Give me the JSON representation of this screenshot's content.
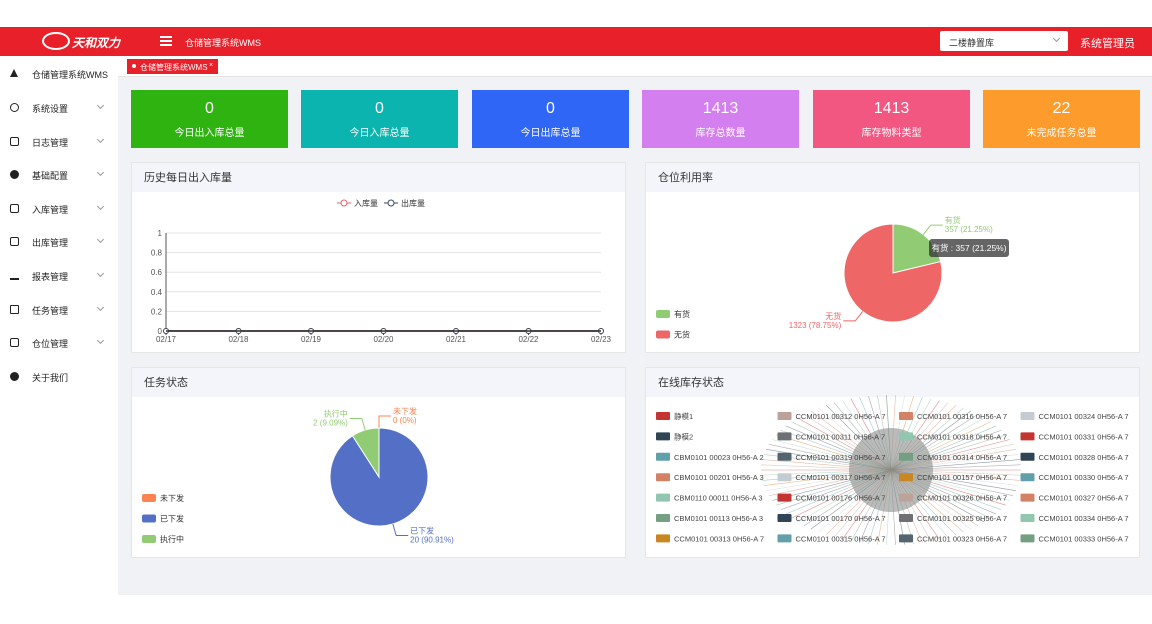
{
  "header": {
    "logo": "天和双力",
    "app_title": "仓储管理系统WMS",
    "warehouse": "二楼静置库",
    "user": "系统管理员"
  },
  "sidebar": {
    "items": [
      "仓储管理系统WMS",
      "系统设置",
      "日志管理",
      "基础配置",
      "入库管理",
      "出库管理",
      "报表管理",
      "任务管理",
      "仓位管理",
      "关于我们"
    ]
  },
  "tabs": [
    "仓储管理系统WMS"
  ],
  "stats": [
    {
      "value": 0,
      "label": "今日出入库总量",
      "color": "#2fb311"
    },
    {
      "value": 0,
      "label": "今日入库总量",
      "color": "#0bb4ae"
    },
    {
      "value": 0,
      "label": "今日出库总量",
      "color": "#2f66f6"
    },
    {
      "value": 1413,
      "label": "库存总数量",
      "color": "#d47ff0"
    },
    {
      "value": 1413,
      "label": "库存物料类型",
      "color": "#f25782"
    },
    {
      "value": 22,
      "label": "未完成任务总量",
      "color": "#fd9b2c"
    }
  ],
  "charts": {
    "daily": {
      "type": "line",
      "title": "历史每日出入库量",
      "categories": [
        "02/17",
        "02/18",
        "02/19",
        "02/20",
        "02/21",
        "02/22",
        "02/23"
      ],
      "series": [
        {
          "name": "入库量",
          "color": "#e06666",
          "values": [
            0,
            0,
            0,
            0,
            0,
            0,
            0
          ]
        },
        {
          "name": "出库量",
          "color": "#3d4a5a",
          "values": [
            0,
            0,
            0,
            0,
            0,
            0,
            0
          ]
        }
      ],
      "ylim": [
        0,
        1
      ],
      "yticks": [
        0,
        0.2,
        0.4,
        0.6,
        0.8,
        1
      ]
    },
    "storage": {
      "type": "pie",
      "title": "仓位利用率",
      "categories": [
        "有货",
        "无货"
      ],
      "values": [
        357,
        1323
      ],
      "value_labels": [
        "357 (21.25%)",
        "1323 (78.75%)"
      ],
      "colors": [
        "#91cc75",
        "#ee6666"
      ],
      "tooltip": "有货 : 357 (21.25%)"
    },
    "tasks": {
      "type": "pie",
      "title": "任务状态",
      "categories": [
        "未下发",
        "已下发",
        "执行中"
      ],
      "values": [
        0,
        20,
        2
      ],
      "value_labels": [
        "0 (0%)",
        "20 (90.91%)",
        "2 (9.09%)"
      ],
      "colors": [
        "#fc8452",
        "#5470c6",
        "#91cc75"
      ]
    },
    "inventory": {
      "title": "在线库存状态",
      "legend": [
        {
          "name": "静模1",
          "color": "#c23531"
        },
        {
          "name": "CCM0101 00312 0H56-A 7",
          "color": "#bda29a"
        },
        {
          "name": "CCM0101 00316 0H56-A 7",
          "color": "#d48265"
        },
        {
          "name": "CCM0101 00324 0H56-A 7",
          "color": "#c4ccd3"
        },
        {
          "name": "静模2",
          "color": "#2f4554"
        },
        {
          "name": "CCM0101 00311 0H56-A 7",
          "color": "#6e7074"
        },
        {
          "name": "CCM0101 00318 0H56-A 7",
          "color": "#91c7ae"
        },
        {
          "name": "CCM0101 00331 0H56-A 7",
          "color": "#c23531"
        },
        {
          "name": "CBM0101 00023 0H56-A 2",
          "color": "#61a0a8"
        },
        {
          "name": "CCM0101 00319 0H56-A 7",
          "color": "#546570"
        },
        {
          "name": "CCM0101 00314 0H56-A 7",
          "color": "#749f83"
        },
        {
          "name": "CCM0101 00328 0H56-A 7",
          "color": "#2f4554"
        },
        {
          "name": "CBM0101 00201 0H56-A 3",
          "color": "#d48265"
        },
        {
          "name": "CCM0101 00317 0H56-A 7",
          "color": "#c4ccd3"
        },
        {
          "name": "CCM0101 00157 0H56-A 7",
          "color": "#ca8622"
        },
        {
          "name": "CCM0101 00330 0H56-A 7",
          "color": "#61a0a8"
        },
        {
          "name": "CBM0110 00011 0H56-A 3",
          "color": "#91c7ae"
        },
        {
          "name": "CCM0101 00176 0H56-A 7",
          "color": "#c23531"
        },
        {
          "name": "CCM0101 00326 0H56-A 7",
          "color": "#bda29a"
        },
        {
          "name": "CCM0101 00327 0H56-A 7",
          "color": "#d48265"
        },
        {
          "name": "CBM0101 00113 0H56-A 3",
          "color": "#749f83"
        },
        {
          "name": "CCM0101 00170 0H56-A 7",
          "color": "#2f4554"
        },
        {
          "name": "CCM0101 00325 0H56-A 7",
          "color": "#6e7074"
        },
        {
          "name": "CCM0101 00334 0H56-A 7",
          "color": "#91c7ae"
        },
        {
          "name": "CCM0101 00313 0H56-A 7",
          "color": "#ca8622"
        },
        {
          "name": "CCM0101 00315 0H56-A 7",
          "color": "#61a0a8"
        },
        {
          "name": "CCM0101 00323 0H56-A 7",
          "color": "#546570"
        },
        {
          "name": "CCM0101 00333 0H56-A 7",
          "color": "#749f83"
        }
      ]
    }
  }
}
